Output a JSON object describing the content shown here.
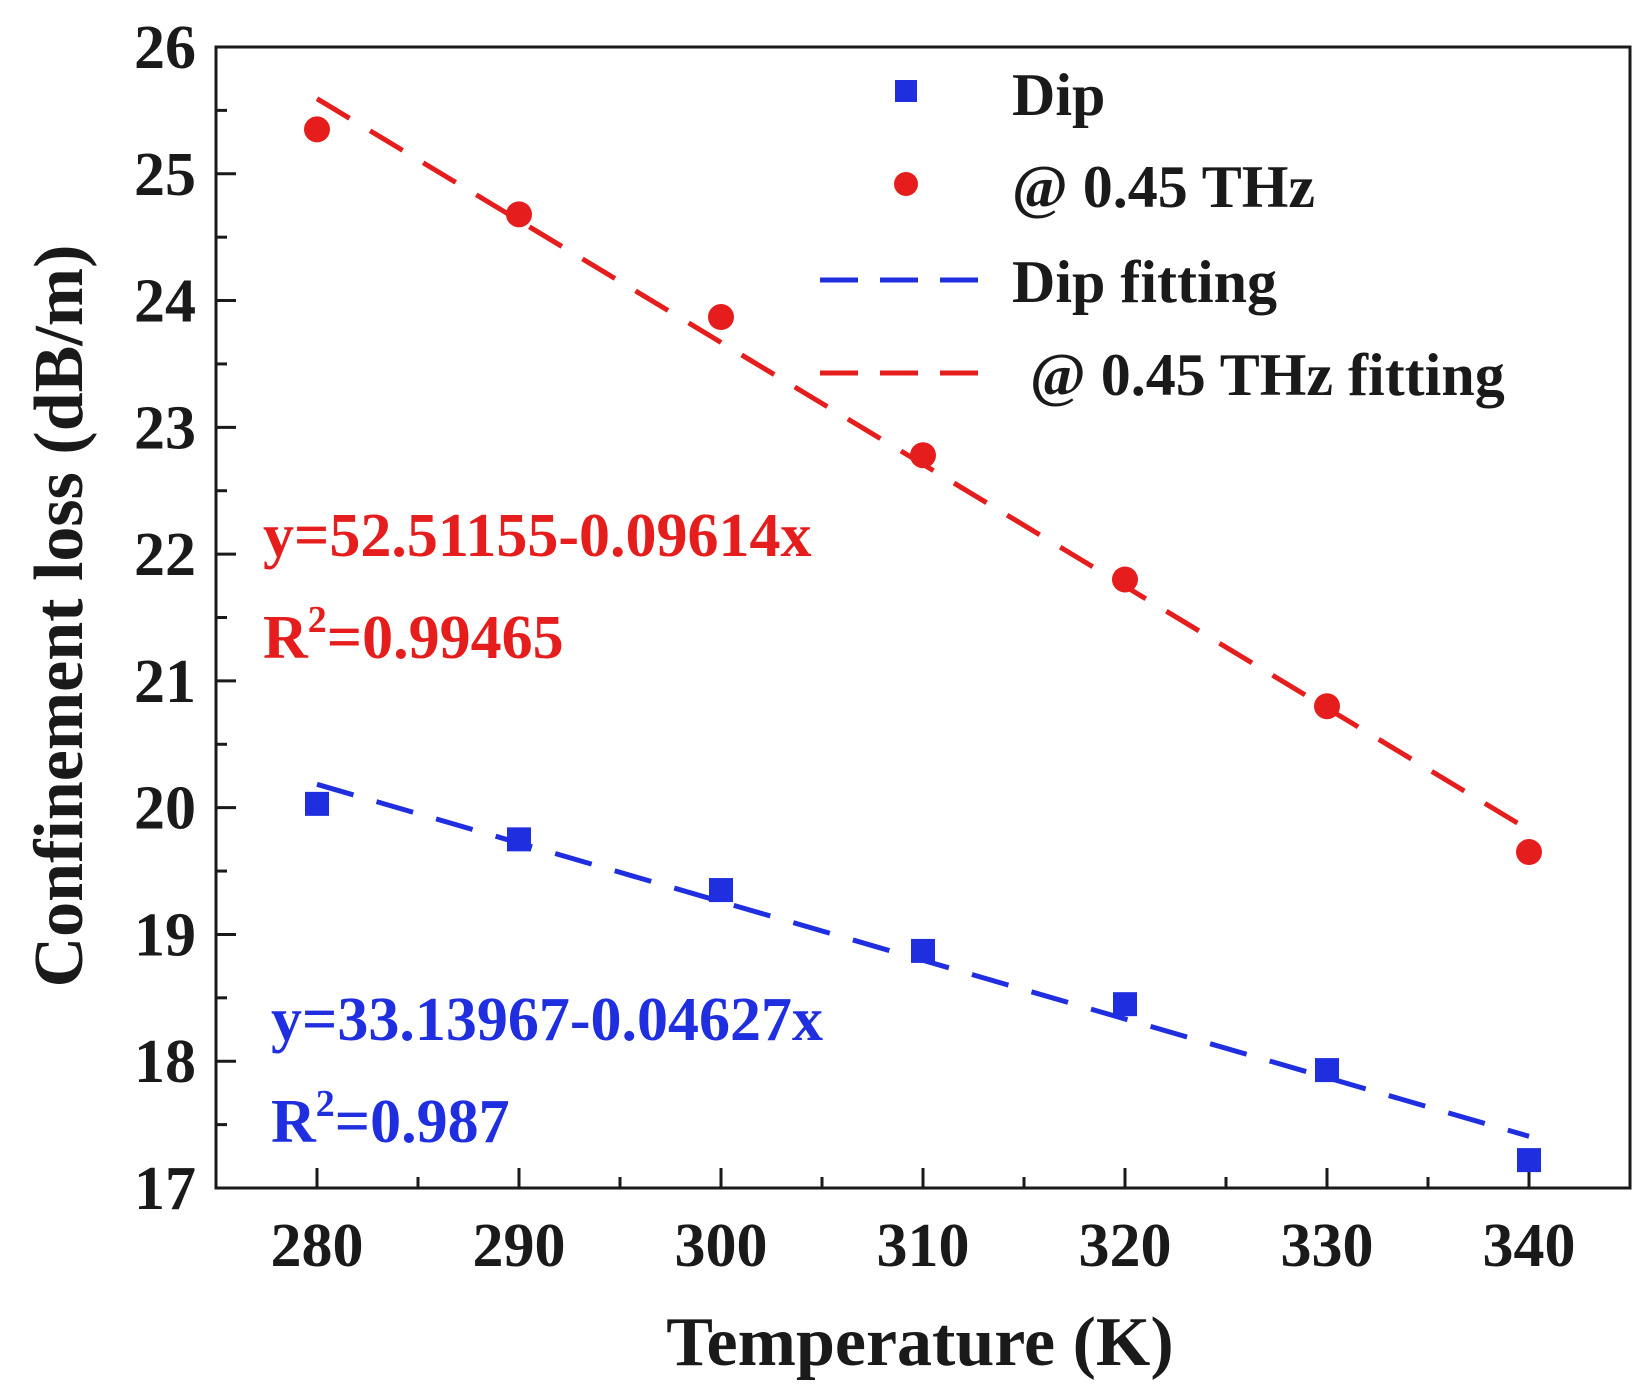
{
  "chart_data": {
    "type": "scatter",
    "xlabel": "Temperature (K)",
    "ylabel": "Confinement loss (dB/m)",
    "xlim": [
      275,
      345
    ],
    "ylim": [
      17,
      26
    ],
    "x_ticks": [
      280,
      290,
      300,
      310,
      320,
      330,
      340
    ],
    "y_ticks": [
      17,
      18,
      19,
      20,
      21,
      22,
      23,
      24,
      25,
      26
    ],
    "grid": false,
    "legend_position": "top-right",
    "x": [
      280,
      290,
      300,
      310,
      320,
      330,
      340
    ],
    "series": [
      {
        "name": "Dip",
        "marker": "square",
        "color": "#1f2fe0",
        "values": [
          20.03,
          19.75,
          19.35,
          18.87,
          18.45,
          17.93,
          17.22
        ]
      },
      {
        "name": "@ 0.45 THz",
        "marker": "circle",
        "color": "#e51d1d",
        "values": [
          25.35,
          24.68,
          23.87,
          22.78,
          21.8,
          20.8,
          19.65
        ]
      }
    ],
    "fits": [
      {
        "name": "Dip fitting",
        "color": "#1f2fe0",
        "line_style": "dashed",
        "intercept": 33.13967,
        "slope": -0.04627,
        "equation": "y=33.13967-0.04627x",
        "r2_prefix": "R",
        "r2_exp": "2",
        "r2_value": "=0.987"
      },
      {
        "name": "@ 0.45 THz fitting",
        "color": "#e51d1d",
        "line_style": "dashed",
        "intercept": 52.51155,
        "slope": -0.09614,
        "equation": "y=52.51155-0.09614x",
        "r2_prefix": "R",
        "r2_exp": "2",
        "r2_value": "=0.99465"
      }
    ]
  }
}
